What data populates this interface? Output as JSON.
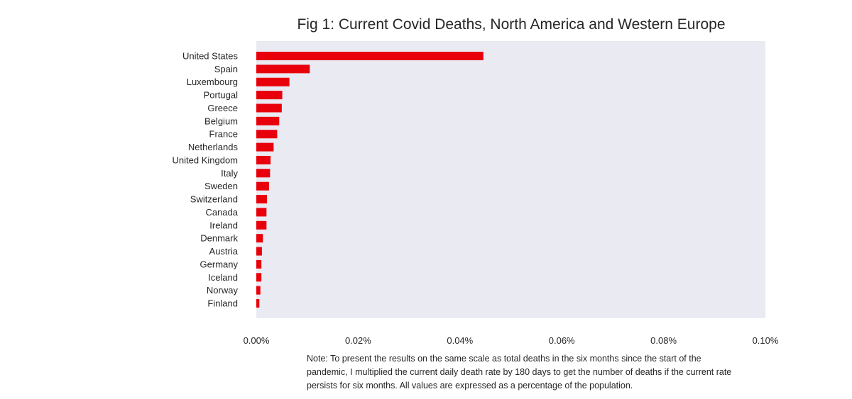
{
  "chart_data": {
    "type": "bar",
    "orientation": "horizontal",
    "title": "Fig 1: Current Covid Deaths, North America and Western Europe",
    "xlabel": "",
    "ylabel": "",
    "xlim": [
      0,
      0.1
    ],
    "x_ticks": [
      "0.00%",
      "0.02%",
      "0.04%",
      "0.06%",
      "0.08%",
      "0.10%"
    ],
    "grid": false,
    "bar_color": "#e8000b",
    "plot_background": "#eaeaf2",
    "categories": [
      "United States",
      "Spain",
      "Luxembourg",
      "Portugal",
      "Greece",
      "Belgium",
      "France",
      "Netherlands",
      "United Kingdom",
      "Italy",
      "Sweden",
      "Switzerland",
      "Canada",
      "Ireland",
      "Denmark",
      "Austria",
      "Germany",
      "Iceland",
      "Norway",
      "Finland"
    ],
    "values": [
      0.0446,
      0.0105,
      0.0065,
      0.0051,
      0.005,
      0.0045,
      0.0041,
      0.0034,
      0.0028,
      0.0027,
      0.0025,
      0.0021,
      0.002,
      0.002,
      0.0013,
      0.0011,
      0.001,
      0.001,
      0.0008,
      0.0006
    ]
  },
  "note": "Note: To present the results on the same scale as total deaths in the six months since the start of the pandemic, I multiplied the current daily death rate by 180 days to get the number of deaths if the current rate persists for six months. All values are expressed as a percentage of the population."
}
